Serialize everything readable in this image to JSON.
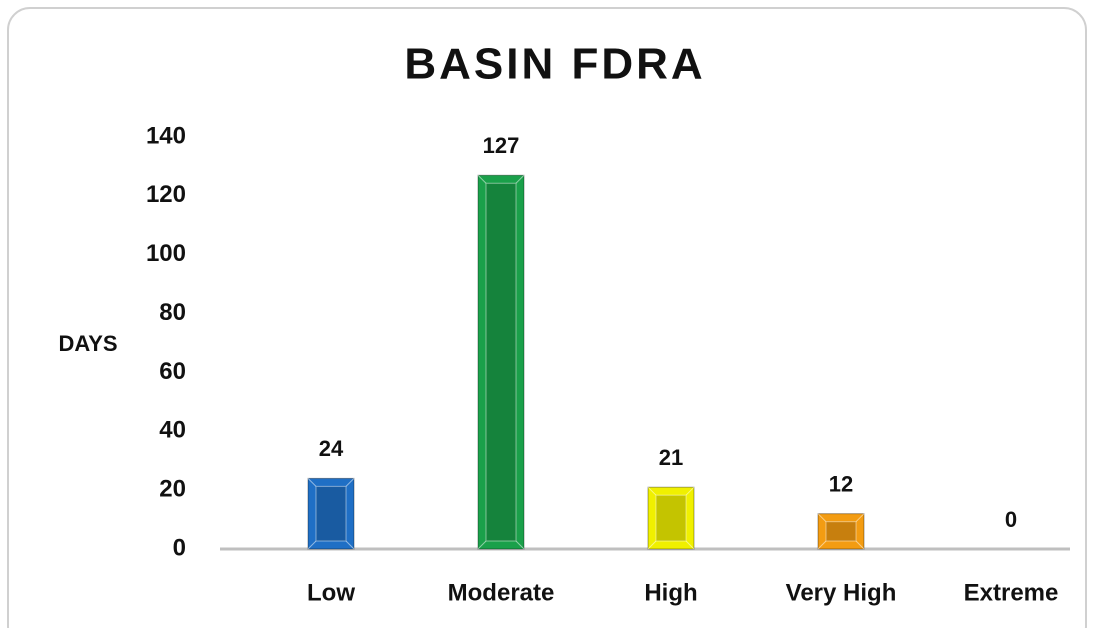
{
  "chart_data": {
    "type": "bar",
    "title": "BASIN FDRA",
    "y_label": "DAYS",
    "categories": [
      "Low",
      "Moderate",
      "High",
      "Very High",
      "Extreme"
    ],
    "values": [
      24,
      127,
      21,
      12,
      0
    ],
    "colors": [
      "#1f6fc5",
      "#1aa04a",
      "#f0f000",
      "#f39c12"
    ],
    "ylim": [
      0,
      140
    ],
    "yticks": [
      0,
      20,
      40,
      60,
      80,
      100,
      120,
      140
    ],
    "grid": false
  }
}
